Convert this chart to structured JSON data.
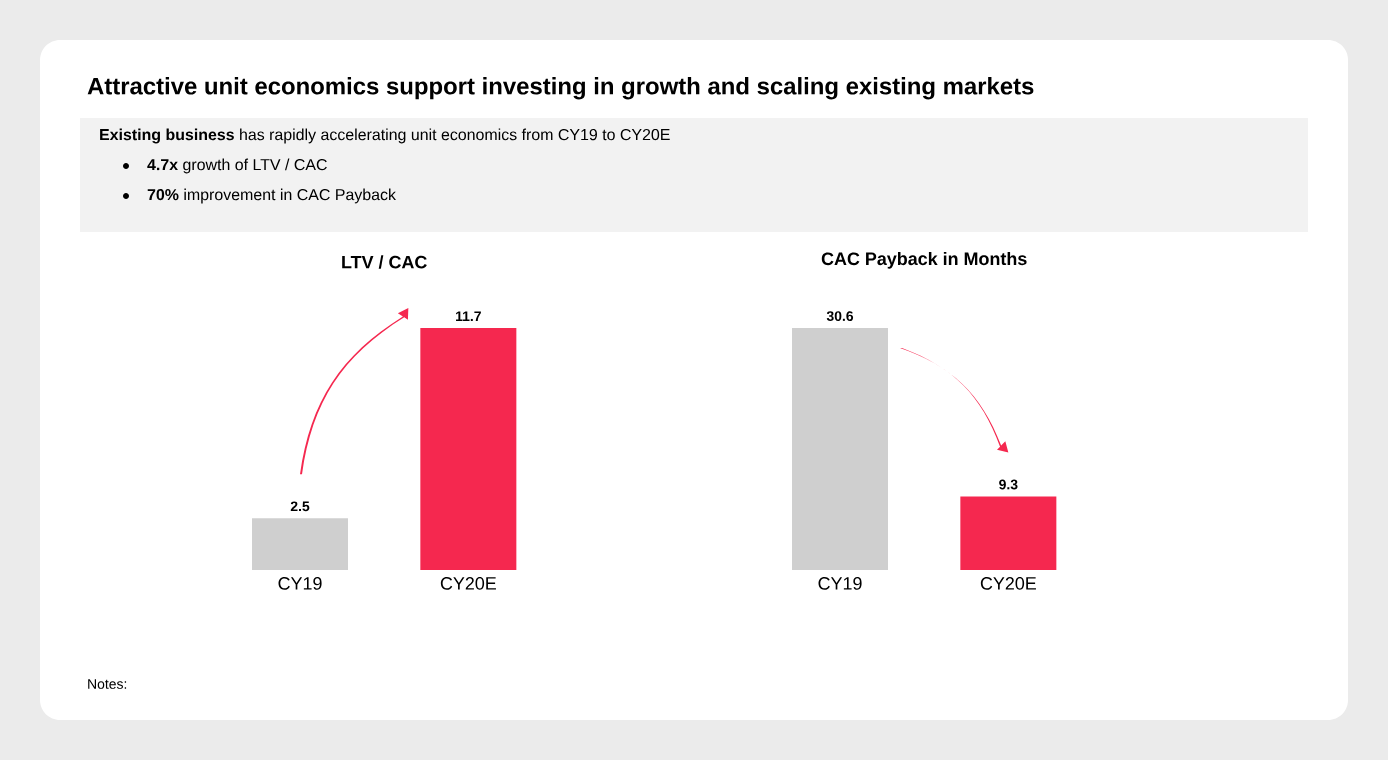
{
  "chart_data": [
    {
      "type": "other",
      "title": "Attractive unit economics support investing in growth and scaling existing markets",
      "annotations": [
        "**Existing business** has rapidly accelerating unit economics from CY19 to CY20E",
        "**4.7x** growth of LTV / CAC",
        "**70%** improvement in CAC Payback",
        "Notes:"
      ]
    },
    {
      "type": "bar",
      "title": "LTV / CAC",
      "categories": [
        "CY19",
        "CY20E"
      ],
      "values": [
        2.5,
        11.7
      ],
      "colors": [
        "#cfcfcf",
        "#f5284f"
      ],
      "data_labels": true
    },
    {
      "type": "bar",
      "title": "CAC Payback in Months",
      "categories": [
        "CY19",
        "CY20E"
      ],
      "values": [
        30.6,
        9.3
      ],
      "colors": [
        "#cfcfcf",
        "#f5284f"
      ],
      "data_labels": true
    }
  ]
}
